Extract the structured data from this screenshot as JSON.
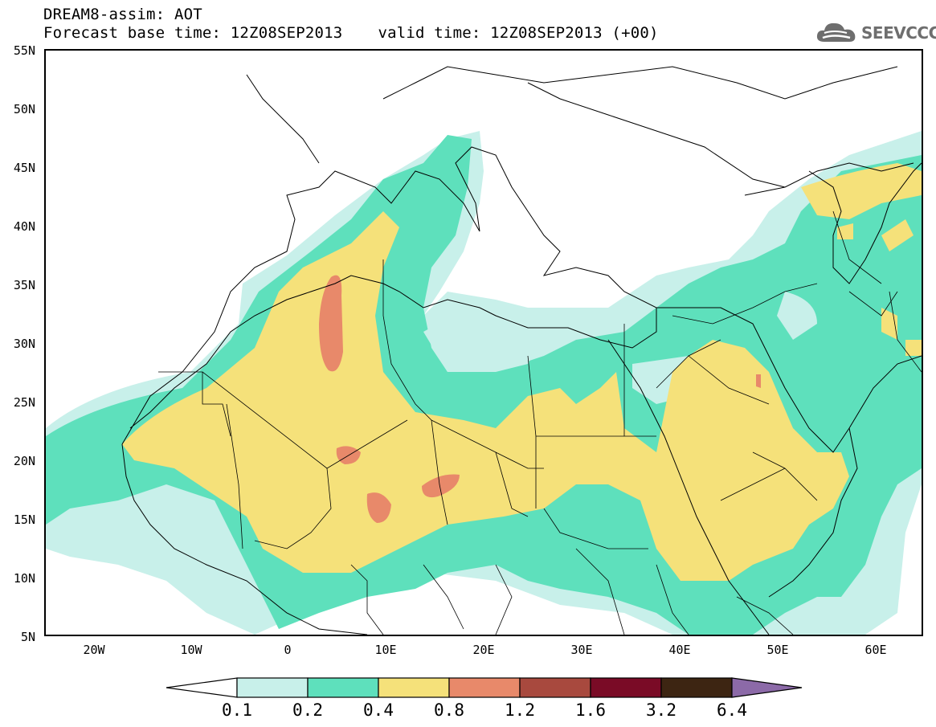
{
  "header": {
    "title_line1": "DREAM8-assim: AOT",
    "base_time": "Forecast base time: 12Z08SEP2013",
    "valid_time": "valid time: 12Z08SEP2013 (+00)",
    "logo_text": "SEEVCCC"
  },
  "map": {
    "lon_range": [
      -25,
      65
    ],
    "lat_range": [
      5,
      55
    ],
    "lat_ticks": [
      {
        "value": 55,
        "label": "55N"
      },
      {
        "value": 50,
        "label": "50N"
      },
      {
        "value": 45,
        "label": "45N"
      },
      {
        "value": 40,
        "label": "40N"
      },
      {
        "value": 35,
        "label": "35N"
      },
      {
        "value": 30,
        "label": "30N"
      },
      {
        "value": 25,
        "label": "25N"
      },
      {
        "value": 20,
        "label": "20N"
      },
      {
        "value": 15,
        "label": "15N"
      },
      {
        "value": 10,
        "label": "10N"
      },
      {
        "value": 5,
        "label": "5N"
      }
    ],
    "lon_ticks": [
      {
        "value": -20,
        "label": "20W"
      },
      {
        "value": -10,
        "label": "10W"
      },
      {
        "value": 0,
        "label": "0"
      },
      {
        "value": 10,
        "label": "10E"
      },
      {
        "value": 20,
        "label": "20E"
      },
      {
        "value": 30,
        "label": "30E"
      },
      {
        "value": 40,
        "label": "40E"
      },
      {
        "value": 50,
        "label": "50E"
      },
      {
        "value": 60,
        "label": "60E"
      }
    ]
  },
  "colorbar": {
    "labels": [
      "0.1",
      "0.2",
      "0.4",
      "0.8",
      "1.2",
      "1.6",
      "3.2",
      "6.4"
    ],
    "colors": [
      "#c8f0ea",
      "#5ee0bc",
      "#f5e17a",
      "#e8896a",
      "#a8493e",
      "#7a0b26",
      "#3d2512",
      "#8c6aa8"
    ]
  }
}
